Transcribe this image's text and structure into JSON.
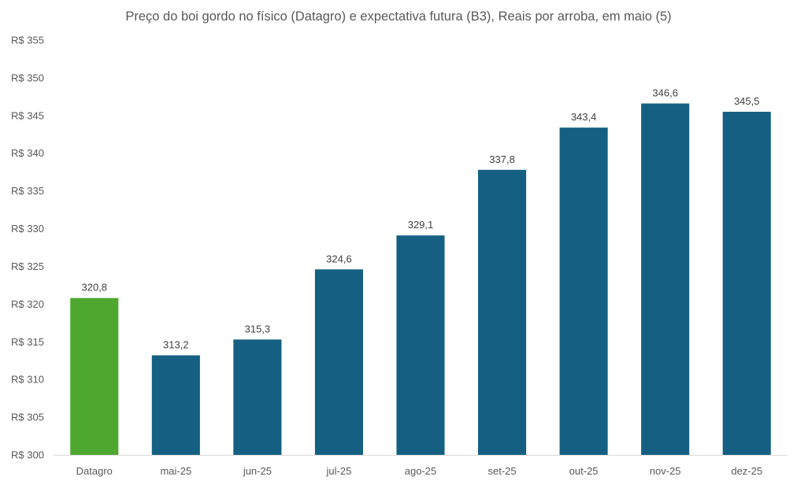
{
  "chart_data": {
    "type": "bar",
    "title": "Preço do boi gordo no físico (Datagro)  e expectativa futura (B3), Reais por arroba, em maio (5)",
    "categories": [
      "Datagro",
      "mai-25",
      "jun-25",
      "jul-25",
      "ago-25",
      "set-25",
      "out-25",
      "nov-25",
      "dez-25"
    ],
    "values": [
      320.8,
      313.2,
      315.3,
      324.6,
      329.1,
      337.8,
      343.4,
      346.6,
      345.5
    ],
    "data_labels": [
      "320,8",
      "313,2",
      "315,3",
      "324,6",
      "329,1",
      "337,8",
      "343,4",
      "346,6",
      "345,5"
    ],
    "bar_colors": [
      "#4ea72e",
      "#156082",
      "#156082",
      "#156082",
      "#156082",
      "#156082",
      "#156082",
      "#156082",
      "#156082"
    ],
    "ylim": [
      300,
      355
    ],
    "yticks": [
      300,
      305,
      310,
      315,
      320,
      325,
      330,
      335,
      340,
      345,
      350,
      355
    ],
    "ytick_labels": [
      "R$ 300",
      "R$ 305",
      "R$ 310",
      "R$ 315",
      "R$ 320",
      "R$ 325",
      "R$ 330",
      "R$ 335",
      "R$ 340",
      "R$ 345",
      "R$ 350",
      "R$ 355"
    ],
    "xlabel": "",
    "ylabel": "",
    "grid": false,
    "legend": "none"
  }
}
